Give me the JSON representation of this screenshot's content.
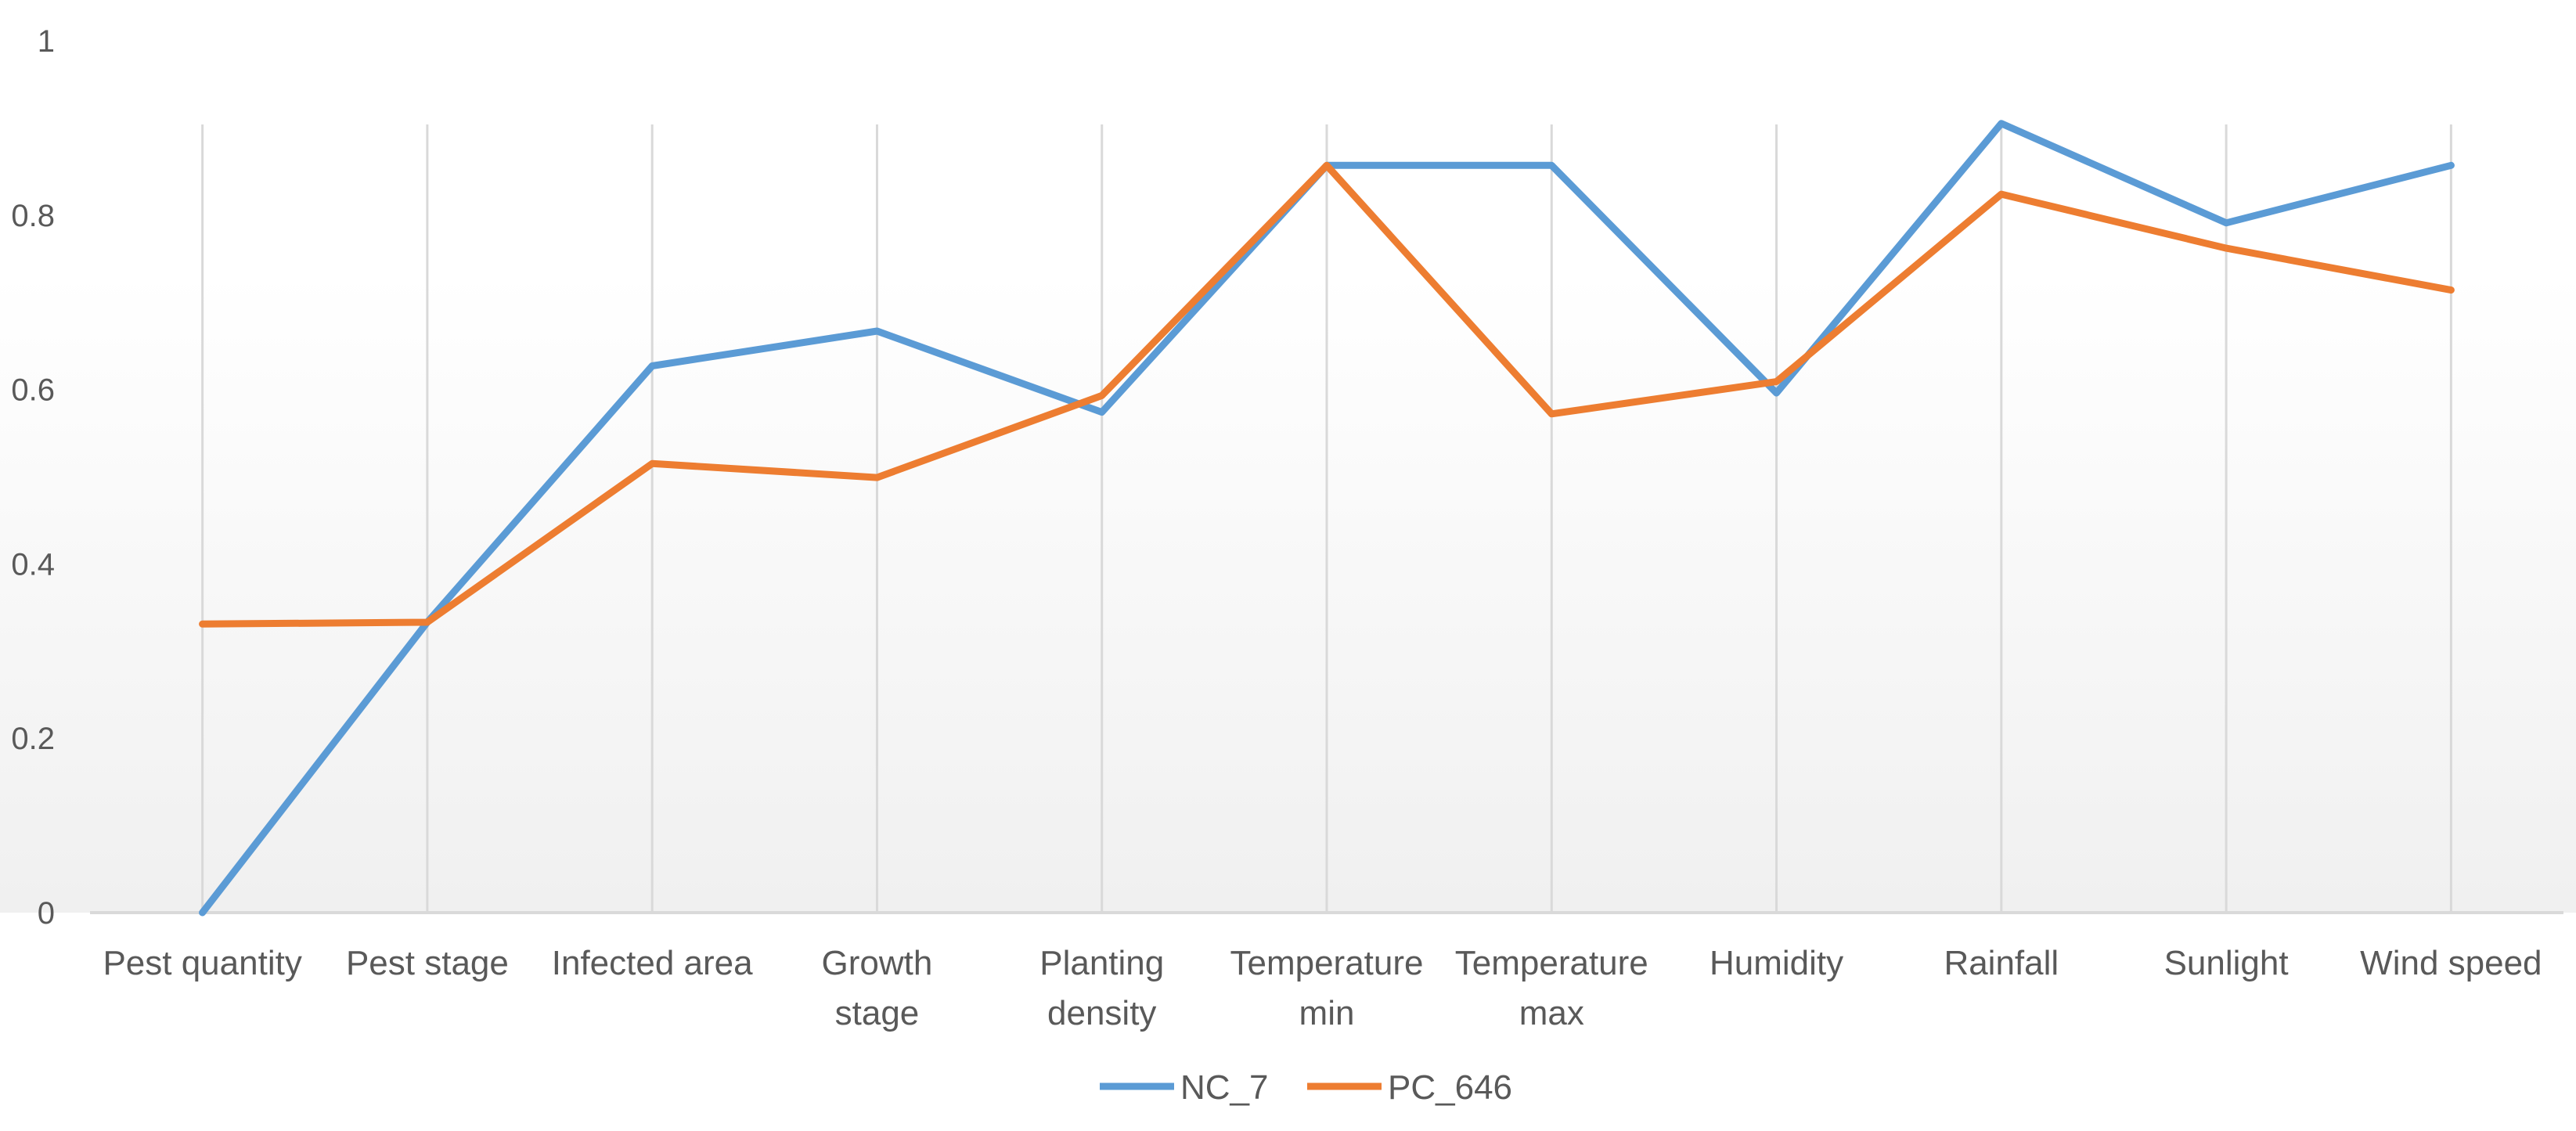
{
  "chart_data": {
    "type": "line",
    "title": "",
    "xlabel": "",
    "ylabel": "",
    "ylim": [
      0,
      1
    ],
    "yticks": [
      "0",
      "0.2",
      "0.4",
      "0.6",
      "0.8",
      "1"
    ],
    "categories": [
      [
        "Pest quantity"
      ],
      [
        "Pest stage"
      ],
      [
        "Infected area"
      ],
      [
        "Growth",
        "stage"
      ],
      [
        "Planting",
        "density"
      ],
      [
        "Temperature",
        "min"
      ],
      [
        "Temperature",
        "max"
      ],
      [
        "Humidity"
      ],
      [
        "Rainfall"
      ],
      [
        "Sunlight"
      ],
      [
        "Wind speed"
      ]
    ],
    "series": [
      {
        "name": "NC_7",
        "color": "#5B9BD5",
        "values": [
          0.0,
          0.333,
          0.627,
          0.667,
          0.574,
          0.857,
          0.857,
          0.596,
          0.905,
          0.791,
          0.857
        ]
      },
      {
        "name": "PC_646",
        "color": "#ED7D31",
        "values": [
          0.331,
          0.333,
          0.515,
          0.499,
          0.593,
          0.857,
          0.572,
          0.609,
          0.824,
          0.762,
          0.714
        ]
      }
    ],
    "legend_position": "bottom",
    "grid": "vertical"
  }
}
